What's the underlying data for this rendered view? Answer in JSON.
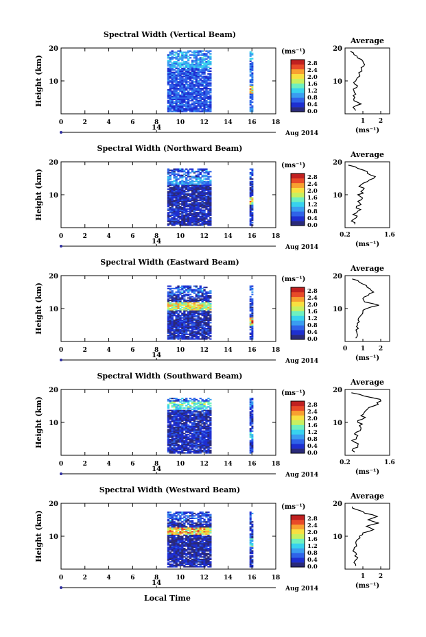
{
  "figure": {
    "x_axis_label": "Local Time",
    "date_label": "Aug 2014",
    "day_label": "14",
    "height_label": "Height (km)",
    "colorbar_unit": "(ms⁻¹)",
    "avg_unit": "(ms⁻¹)",
    "avg_title": "Average",
    "colorbar_ticks": [
      "2.8",
      "2.4",
      "2.0",
      "1.6",
      "1.2",
      "0.8",
      "0.4",
      "0.0"
    ],
    "colormap": [
      "#2a2a7a",
      "#1e2fd0",
      "#2f63e8",
      "#3a9df0",
      "#38d2ee",
      "#6ef0c0",
      "#c8f060",
      "#f8e040",
      "#f8a030",
      "#e84a28",
      "#c02020"
    ],
    "time_ticks": [
      "0",
      "2",
      "4",
      "6",
      "8",
      "10",
      "12",
      "14",
      "16",
      "18"
    ],
    "height_ticks": [
      "20",
      "10"
    ]
  },
  "chart_data": [
    {
      "type": "heatmap",
      "title": "Spectral Width (Vertical Beam)",
      "xlabel": "Local Time",
      "ylabel": "Height (km)",
      "xlim": [
        0,
        18
      ],
      "ylim": [
        0,
        20
      ],
      "clim": [
        0.0,
        3.0
      ],
      "data_blocks": [
        {
          "t_start": 8.9,
          "t_end": 12.6,
          "h_start": 0.6,
          "h_end": 19.3,
          "typical": 0.6,
          "band_km": 15,
          "band_value": 1.2
        },
        {
          "t_start": 15.8,
          "t_end": 16.1,
          "h_start": 0.6,
          "h_end": 19.0,
          "typical": 0.7,
          "band_km": 7,
          "band_value": 2.5
        }
      ],
      "average_profile": {
        "xlim": [
          0,
          2.5
        ],
        "xticks": [
          "1",
          "2"
        ],
        "xtick_values": [
          1,
          2
        ],
        "ylim": [
          0,
          20
        ],
        "heights": [
          1,
          2,
          3,
          4,
          5,
          6,
          7,
          8,
          9,
          10,
          11,
          12,
          13,
          14,
          15,
          16,
          17,
          18,
          19
        ],
        "values": [
          0.6,
          0.45,
          0.9,
          0.5,
          0.55,
          0.6,
          0.5,
          0.65,
          0.55,
          0.6,
          0.7,
          0.8,
          0.95,
          0.9,
          1.1,
          1.0,
          0.7,
          0.5,
          0.3
        ]
      }
    },
    {
      "type": "heatmap",
      "title": "Spectral Width (Northward Beam)",
      "xlabel": "Local Time",
      "ylabel": "Height (km)",
      "xlim": [
        0,
        18
      ],
      "ylim": [
        0,
        20
      ],
      "clim": [
        0.0,
        3.0
      ],
      "data_blocks": [
        {
          "t_start": 8.9,
          "t_end": 12.6,
          "h_start": 0.6,
          "h_end": 18.0,
          "typical": 0.3,
          "band_km": 14,
          "band_value": 1.1
        },
        {
          "t_start": 15.8,
          "t_end": 16.1,
          "h_start": 0.6,
          "h_end": 18.0,
          "typical": 0.4,
          "band_km": 8,
          "band_value": 2.4
        }
      ],
      "average_profile": {
        "xlim": [
          0.2,
          1.6
        ],
        "xticks": [
          "0.2",
          "1.6"
        ],
        "xtick_values": [
          0.2,
          1.6
        ],
        "ylim": [
          0,
          20
        ],
        "heights": [
          1,
          2,
          3,
          4,
          5,
          6,
          7,
          8,
          9,
          10,
          11,
          12,
          13,
          14,
          15,
          16,
          17,
          18,
          19
        ],
        "values": [
          0.5,
          0.4,
          0.55,
          0.45,
          0.6,
          0.55,
          0.7,
          0.6,
          0.75,
          0.6,
          0.7,
          0.8,
          0.7,
          0.9,
          1.1,
          1.0,
          0.9,
          0.6,
          0.3
        ]
      }
    },
    {
      "type": "heatmap",
      "title": "Spectral Width (Eastward Beam)",
      "xlabel": "Local Time",
      "ylabel": "Height (km)",
      "xlim": [
        0,
        18
      ],
      "ylim": [
        0,
        20
      ],
      "clim": [
        0.0,
        3.0
      ],
      "data_blocks": [
        {
          "t_start": 8.9,
          "t_end": 12.6,
          "h_start": 0.6,
          "h_end": 17.0,
          "typical": 0.35,
          "band_km": 10.5,
          "band_value": 2.2
        },
        {
          "t_start": 15.8,
          "t_end": 16.1,
          "h_start": 0.6,
          "h_end": 17.0,
          "typical": 0.5,
          "band_km": 6,
          "band_value": 2.6
        }
      ],
      "average_profile": {
        "xlim": [
          0,
          2.5
        ],
        "xticks": [
          "0",
          "1",
          "2"
        ],
        "xtick_values": [
          0,
          1,
          2
        ],
        "ylim": [
          0,
          20
        ],
        "heights": [
          1,
          2,
          3,
          4,
          5,
          6,
          7,
          8,
          9,
          10,
          11,
          12,
          13,
          14,
          15,
          16,
          17,
          18,
          19
        ],
        "values": [
          0.6,
          0.7,
          0.65,
          0.75,
          0.7,
          0.8,
          0.75,
          0.9,
          1.0,
          1.2,
          1.9,
          1.1,
          1.0,
          1.3,
          1.6,
          1.4,
          1.2,
          0.8,
          0.4
        ]
      }
    },
    {
      "type": "heatmap",
      "title": "Spectral Width (Southward Beam)",
      "xlabel": "Local Time",
      "ylabel": "Height (km)",
      "xlim": [
        0,
        18
      ],
      "ylim": [
        0,
        20
      ],
      "clim": [
        0.0,
        3.0
      ],
      "data_blocks": [
        {
          "t_start": 8.9,
          "t_end": 12.6,
          "h_start": 0.6,
          "h_end": 17.5,
          "typical": 0.35,
          "band_km": 15,
          "band_value": 1.4
        },
        {
          "t_start": 15.8,
          "t_end": 16.1,
          "h_start": 0.6,
          "h_end": 17.5,
          "typical": 0.45,
          "band_km": 6,
          "band_value": 1.4
        }
      ],
      "average_profile": {
        "xlim": [
          0.2,
          1.6
        ],
        "xticks": [
          "0.2",
          "1.6"
        ],
        "xtick_values": [
          0.2,
          1.6
        ],
        "ylim": [
          0,
          20
        ],
        "heights": [
          1,
          2,
          3,
          4,
          5,
          6,
          7,
          8,
          9,
          10,
          11,
          12,
          13,
          14,
          15,
          16,
          17,
          18,
          19
        ],
        "values": [
          0.5,
          0.45,
          0.6,
          0.5,
          0.55,
          0.6,
          0.55,
          0.7,
          0.65,
          0.6,
          0.75,
          0.7,
          0.8,
          0.9,
          1.1,
          1.2,
          1.3,
          0.8,
          0.4
        ]
      }
    },
    {
      "type": "heatmap",
      "title": "Spectral Width (Westward Beam)",
      "xlabel": "Local Time",
      "ylabel": "Height (km)",
      "xlim": [
        0,
        18
      ],
      "ylim": [
        0,
        20
      ],
      "clim": [
        0.0,
        3.0
      ],
      "data_blocks": [
        {
          "t_start": 8.9,
          "t_end": 12.6,
          "h_start": 0.6,
          "h_end": 17.5,
          "typical": 0.3,
          "band_km": 11.5,
          "band_value": 2.4
        },
        {
          "t_start": 15.8,
          "t_end": 16.1,
          "h_start": 0.6,
          "h_end": 17.5,
          "typical": 0.4,
          "band_km": 8,
          "band_value": 1.6
        }
      ],
      "average_profile": {
        "xlim": [
          0,
          2.5
        ],
        "xticks": [
          "1",
          "2"
        ],
        "xtick_values": [
          1,
          2
        ],
        "ylim": [
          0,
          20
        ],
        "heights": [
          1,
          2,
          3,
          4,
          5,
          6,
          7,
          8,
          9,
          10,
          11,
          12,
          13,
          14,
          15,
          16,
          17,
          18,
          19
        ],
        "values": [
          0.6,
          0.5,
          0.65,
          0.55,
          0.6,
          0.5,
          0.65,
          0.6,
          0.7,
          0.8,
          1.0,
          1.6,
          1.2,
          1.9,
          1.3,
          1.8,
          1.1,
          0.7,
          0.4
        ]
      }
    }
  ]
}
